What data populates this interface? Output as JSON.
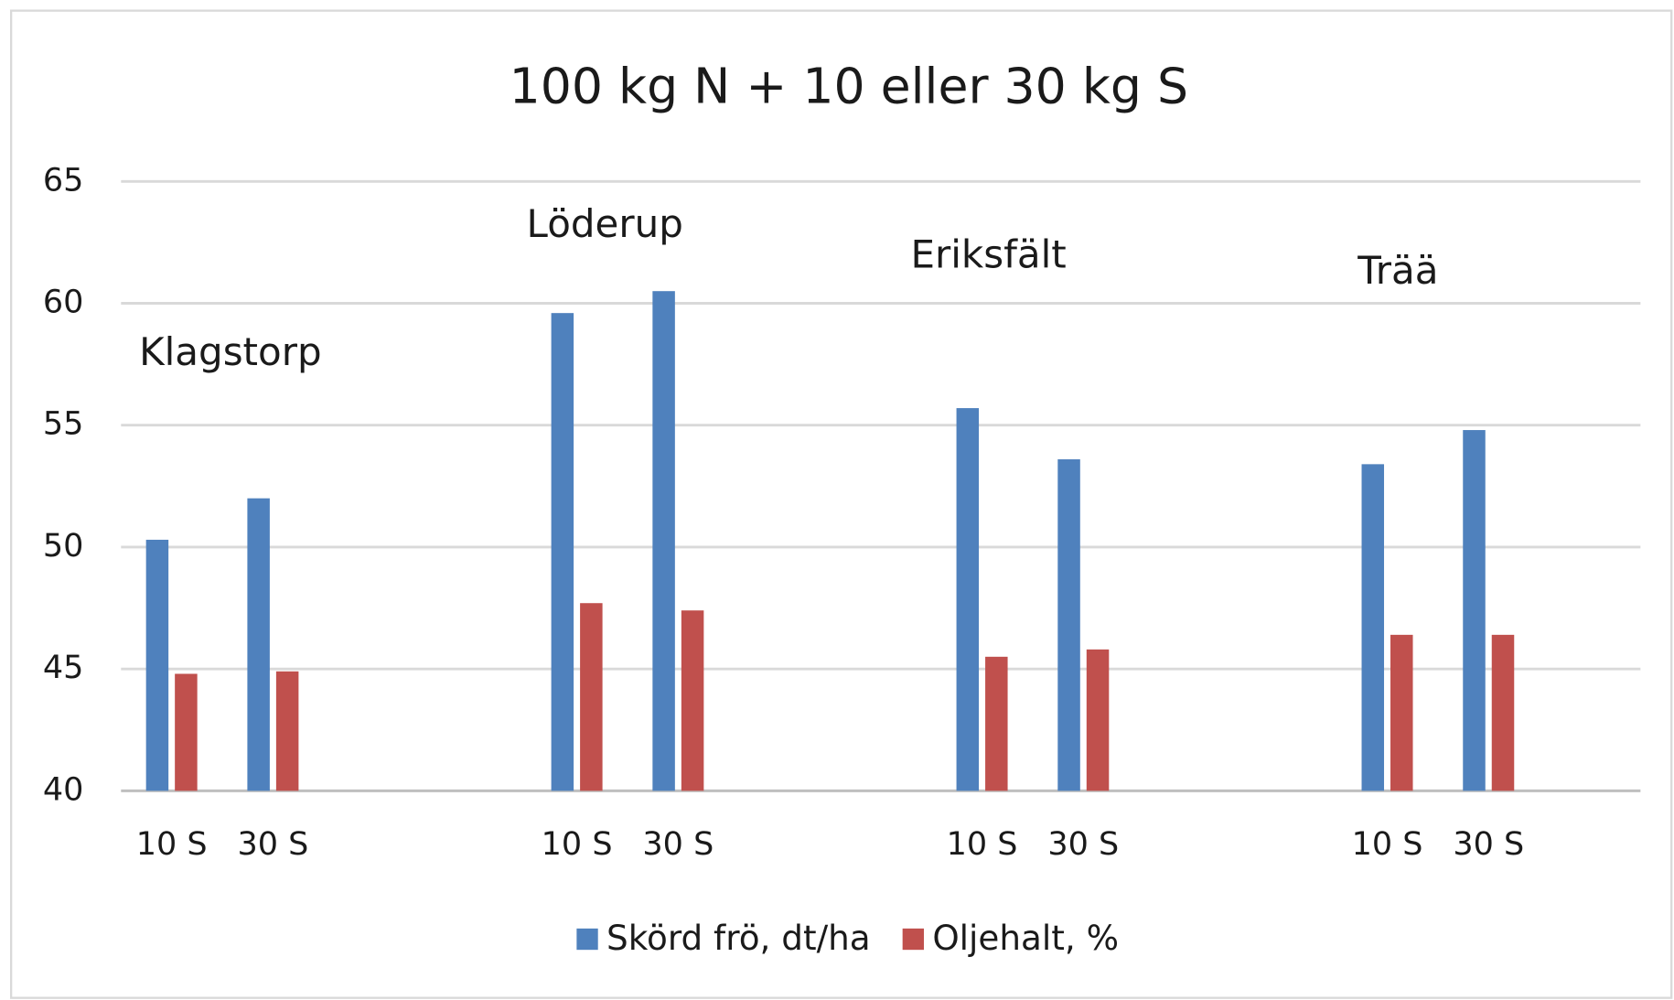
{
  "chart_data": {
    "type": "bar",
    "title": "100 kg N + 10 eller 30 kg S",
    "categories": [
      "10 S",
      "30 S",
      null,
      null,
      "10 S",
      "30 S",
      null,
      null,
      "10 S",
      "30 S",
      null,
      null,
      "10 S",
      "30 S",
      null
    ],
    "series": [
      {
        "name": "Skörd frö, dt/ha",
        "color": "#4f81bd",
        "values": [
          50.3,
          52.0,
          null,
          null,
          59.6,
          60.5,
          null,
          null,
          55.7,
          53.6,
          null,
          null,
          53.4,
          54.8,
          null
        ]
      },
      {
        "name": "Oljehalt, %",
        "color": "#c0504d",
        "values": [
          44.8,
          44.9,
          null,
          null,
          47.7,
          47.4,
          null,
          null,
          45.5,
          45.8,
          null,
          null,
          46.4,
          46.4,
          null
        ]
      }
    ],
    "annotations": [
      "Klagstorp",
      "Löderup",
      "Eriksfält",
      "Trää"
    ],
    "ylim": [
      40,
      65
    ],
    "yticks": [
      40,
      45,
      50,
      55,
      60,
      65
    ],
    "grid": true,
    "legend": "bottom"
  }
}
